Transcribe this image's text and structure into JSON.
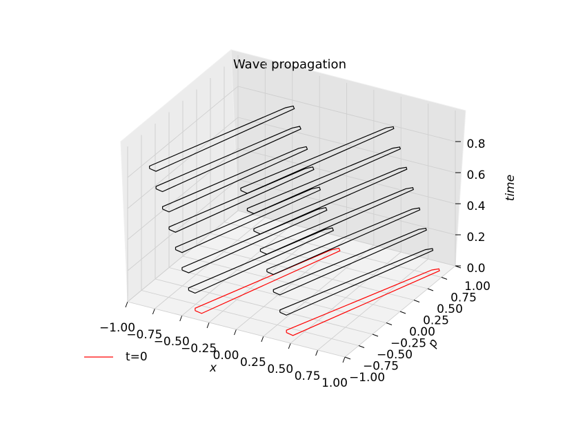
{
  "chart_data": {
    "type": "line3d",
    "title": "Wave propagation",
    "xlabel": "x",
    "ylabel": "p",
    "zlabel": "time",
    "xlim": [
      -1,
      1
    ],
    "ylim": [
      -1,
      1
    ],
    "zlim": [
      0,
      1
    ],
    "xticks": [
      {
        "value": -1,
        "label": "−1.00"
      },
      {
        "value": -0.75,
        "label": "−0.75"
      },
      {
        "value": -0.5,
        "label": "−0.50"
      },
      {
        "value": -0.25,
        "label": "−0.25"
      },
      {
        "value": 0,
        "label": "0.00"
      },
      0.25,
      {
        "value": 0.5,
        "label": "0.50"
      },
      0.75,
      {
        "value": 1,
        "label": "1.00"
      }
    ],
    "yticks": [
      {
        "value": -1,
        "label": "−1.00"
      },
      {
        "value": -0.75,
        "label": "−0.75"
      },
      {
        "value": -0.5,
        "label": "−0.50"
      },
      {
        "value": -0.25,
        "label": "−0.25"
      },
      {
        "value": 0,
        "label": "0.00"
      },
      0.25,
      {
        "value": 0.5,
        "label": "0.50"
      },
      0.75,
      {
        "value": 1,
        "label": "1.00"
      }
    ],
    "zticks": [
      {
        "value": 0,
        "label": "0.0"
      },
      0.2,
      0.4,
      0.6,
      0.8
    ],
    "grid": true,
    "legend": "lower left",
    "series": [
      {
        "name": "t=0",
        "color": "#ff0000",
        "z": 0,
        "x": [
          -0.45,
          -0.38,
          0.06,
          0.03,
          -0.01,
          -0.47,
          -0.45,
          null,
          0.38,
          0.45,
          0.93,
          0.91,
          0.87,
          0.36,
          0.38
        ],
        "y": [
          -0.86,
          -0.88,
          0.76,
          0.8,
          0.74,
          -0.82,
          -0.86,
          null,
          -0.84,
          -0.86,
          0.85,
          0.88,
          0.83,
          -0.8,
          -0.84
        ]
      },
      {
        "color": "#000000",
        "z": 0.12,
        "x": [
          -0.51,
          -0.44,
          0,
          -0.03,
          -0.07,
          -0.53,
          -0.51,
          null,
          0.32,
          0.39,
          0.87,
          0.85,
          0.81,
          0.3,
          0.32
        ],
        "y": [
          -0.86,
          -0.88,
          0.76,
          0.8,
          0.74,
          -0.82,
          -0.86,
          null,
          -0.84,
          -0.86,
          0.85,
          0.88,
          0.83,
          -0.8,
          -0.84
        ]
      },
      {
        "color": "#000000",
        "z": 0.24,
        "x": [
          -0.57,
          -0.5,
          -0.06,
          -0.09,
          -0.13,
          -0.59,
          -0.57,
          null,
          0.26,
          0.33,
          0.81,
          0.79,
          0.75,
          0.24,
          0.26
        ],
        "y": [
          -0.86,
          -0.88,
          0.76,
          0.8,
          0.74,
          -0.82,
          -0.86,
          null,
          -0.84,
          -0.86,
          0.85,
          0.88,
          0.83,
          -0.8,
          -0.84
        ]
      },
      {
        "color": "#000000",
        "z": 0.36,
        "x": [
          -0.63,
          -0.56,
          -0.12,
          -0.15,
          -0.19,
          -0.65,
          -0.63,
          null,
          0.2,
          0.27,
          0.75,
          0.73,
          0.69,
          0.18,
          0.2
        ],
        "y": [
          -0.86,
          -0.88,
          0.76,
          0.8,
          0.74,
          -0.82,
          -0.86,
          null,
          -0.84,
          -0.86,
          0.85,
          0.88,
          0.83,
          -0.8,
          -0.84
        ]
      },
      {
        "color": "#000000",
        "z": 0.48,
        "x": [
          -0.69,
          -0.62,
          -0.18,
          -0.21,
          -0.25,
          -0.71,
          -0.69,
          null,
          0.14,
          0.21,
          0.69,
          0.67,
          0.63,
          0.12,
          0.14
        ],
        "y": [
          -0.86,
          -0.88,
          0.76,
          0.8,
          0.74,
          -0.82,
          -0.86,
          null,
          -0.84,
          -0.86,
          0.85,
          0.88,
          0.83,
          -0.8,
          -0.84
        ]
      },
      {
        "color": "#000000",
        "z": 0.6,
        "x": [
          -0.75,
          -0.68,
          -0.24,
          -0.27,
          -0.31,
          -0.77,
          -0.75,
          null,
          0.08,
          0.15,
          0.63,
          0.61,
          0.57,
          0.06,
          0.08
        ],
        "y": [
          -0.86,
          -0.88,
          0.76,
          0.8,
          0.74,
          -0.82,
          -0.86,
          null,
          -0.84,
          -0.86,
          0.85,
          0.88,
          0.83,
          -0.8,
          -0.84
        ]
      },
      {
        "color": "#000000",
        "z": 0.72,
        "x": [
          -0.81,
          -0.74,
          -0.3,
          -0.33,
          -0.37,
          -0.83,
          -0.81,
          null,
          0.02,
          0.09,
          0.57,
          0.55,
          0.51,
          0,
          0.02
        ],
        "y": [
          -0.86,
          -0.88,
          0.76,
          0.8,
          0.74,
          -0.82,
          -0.86,
          null,
          -0.84,
          -0.86,
          0.85,
          0.88,
          0.83,
          -0.8,
          -0.84
        ]
      },
      {
        "color": "#000000",
        "z": 0.84,
        "x": [
          -0.87,
          -0.8,
          -0.36,
          -0.39,
          -0.43,
          -0.89,
          -0.87,
          null,
          -0.04,
          0.03,
          0.51,
          0.49,
          0.45,
          -0.06,
          -0.04
        ],
        "y": [
          -0.86,
          -0.88,
          0.76,
          0.8,
          0.74,
          -0.82,
          -0.86,
          null,
          -0.84,
          -0.86,
          0.85,
          0.88,
          0.83,
          -0.8,
          -0.84
        ]
      }
    ]
  }
}
